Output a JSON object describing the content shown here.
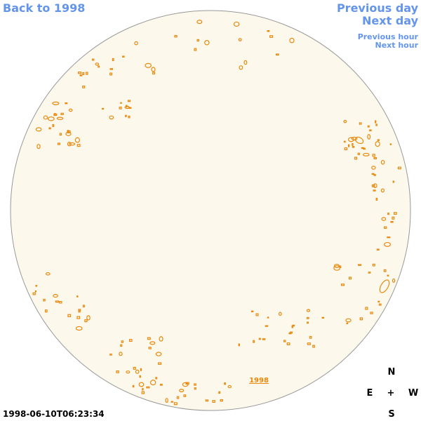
{
  "nav": {
    "back": "Back to 1998",
    "previous_day": "Previous day",
    "next_day": "Next day",
    "previous_hour": "Previous hour",
    "next_hour": "Next hour"
  },
  "timestamp": "1998-06-10T06:23:34",
  "disk_label": "1998",
  "compass": {
    "north": "N",
    "east": "E",
    "center": "+",
    "west": "W",
    "south": "S"
  }
}
